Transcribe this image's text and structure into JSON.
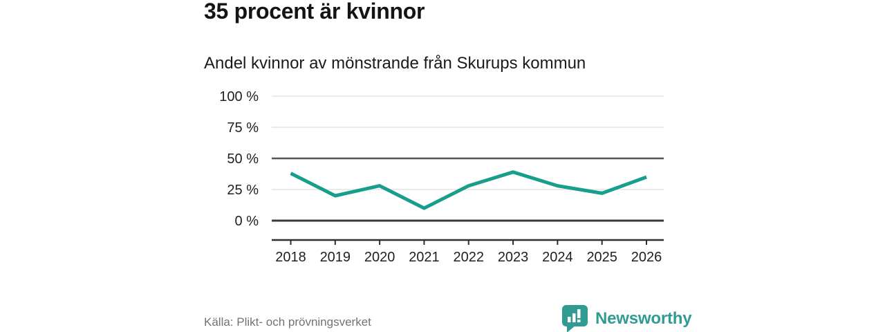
{
  "header": {
    "title": "35 procent är kvinnor",
    "subtitle": "Andel kvinnor av mönstrande från Skurups kommun"
  },
  "chart_data": {
    "type": "line",
    "title": "35 procent är kvinnor",
    "subtitle": "Andel kvinnor av mönstrande från Skurups kommun",
    "categories": [
      "2018",
      "2019",
      "2020",
      "2021",
      "2022",
      "2023",
      "2024",
      "2025",
      "2026"
    ],
    "series": [
      {
        "name": "Andel kvinnor av mönstrande",
        "values": [
          38,
          20,
          28,
          10,
          28,
          39,
          28,
          22,
          35
        ]
      }
    ],
    "unit": "%",
    "ylim": [
      0,
      100
    ],
    "yticks": [
      0,
      25,
      50,
      75,
      100
    ],
    "ytick_labels": [
      "0 %",
      "25 %",
      "50 %",
      "75 %",
      "100 %"
    ],
    "emphasized_gridlines": [
      0,
      50
    ],
    "grid": "horizontal",
    "legend": "none",
    "colors": {
      "line": "#179E8D",
      "light_grid": "#E3E3E3",
      "dark_grid": "#565656",
      "baseline": "#3A3A3A",
      "axis": "#2F2F2F",
      "tick_label": "#1F1F1F"
    }
  },
  "footer": {
    "source": "Källa: Plikt- och prövningsverket",
    "brand": "Newsworthy",
    "brand_color": "#2F9B93"
  }
}
